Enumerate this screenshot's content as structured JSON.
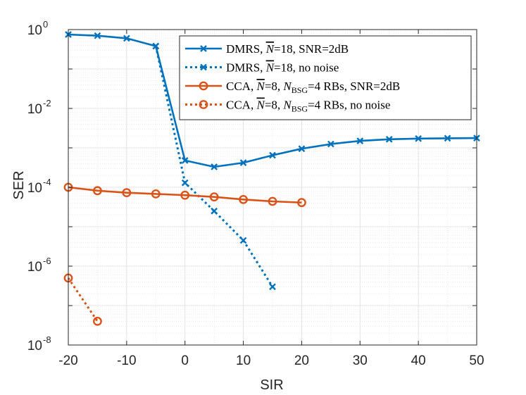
{
  "chart_data": {
    "type": "line",
    "title": "",
    "xlabel": "SIR",
    "ylabel": "SER",
    "xlim": [
      -20,
      50
    ],
    "ylim": [
      1e-08,
      1
    ],
    "yscale": "log",
    "xticks": [
      -20,
      -10,
      0,
      10,
      20,
      30,
      40,
      50
    ],
    "xtick_labels": [
      "-20",
      "-10",
      "0",
      "10",
      "20",
      "30",
      "40",
      "50"
    ],
    "ytick_labels": [
      {
        "base": "10",
        "exp": "0",
        "value": 1
      },
      {
        "base": "10",
        "exp": "-2",
        "value": 0.01
      },
      {
        "base": "10",
        "exp": "-4",
        "value": 0.0001
      },
      {
        "base": "10",
        "exp": "-6",
        "value": 1e-06
      },
      {
        "base": "10",
        "exp": "-8",
        "value": 1e-08
      }
    ],
    "grid": true,
    "legend_position": "top-right",
    "series": [
      {
        "name": "DMRS, N̄=18, SNR=2dB",
        "legend": {
          "prefix": "DMRS, ",
          "nbar": "N",
          "nbar_sub": "",
          "middle": "=18, SNR=2dB"
        },
        "color": "#0072BD",
        "style": "solid",
        "marker": "x",
        "x": [
          -20,
          -15,
          -10,
          -5,
          0,
          5,
          10,
          15,
          20,
          25,
          30,
          35,
          40,
          45,
          50
        ],
        "y": [
          0.75,
          0.7,
          0.6,
          0.38,
          0.00048,
          0.00033,
          0.00042,
          0.00065,
          0.00095,
          0.00125,
          0.0015,
          0.00165,
          0.00172,
          0.00175,
          0.00177
        ]
      },
      {
        "name": "DMRS, N̄=18, no noise",
        "legend": {
          "prefix": "DMRS, ",
          "nbar": "N",
          "nbar_sub": "",
          "middle": "=18, no noise"
        },
        "color": "#0072BD",
        "style": "dotted",
        "marker": "x",
        "x": [
          -5,
          0,
          5,
          10,
          15
        ],
        "y": [
          0.38,
          0.00013,
          2.5e-05,
          4.5e-06,
          3e-07
        ]
      },
      {
        "name": "CCA, N̄=8, N_BSG=4 RBs, SNR=2dB",
        "legend": {
          "prefix": "CCA, ",
          "nbar": "N",
          "nbar_sub": "",
          "middle": "=8, ",
          "nbsg": "N",
          "nbsg_sub": "BSG",
          "suffix": "=4 RBs, SNR=2dB"
        },
        "color": "#D95319",
        "style": "solid",
        "marker": "o",
        "x": [
          -20,
          -15,
          -10,
          -5,
          0,
          5,
          10,
          15,
          20
        ],
        "y": [
          0.0001,
          8.2e-05,
          7.3e-05,
          6.8e-05,
          6.3e-05,
          5.7e-05,
          4.9e-05,
          4.4e-05,
          4.1e-05
        ]
      },
      {
        "name": "CCA, N̄=8, N_BSG=4 RBs, no noise",
        "legend": {
          "prefix": "CCA, ",
          "nbar": "N",
          "nbar_sub": "",
          "middle": "=8, ",
          "nbsg": "N",
          "nbsg_sub": "BSG",
          "suffix": "=4 RBs, no noise"
        },
        "color": "#D95319",
        "style": "dotted",
        "marker": "o",
        "x": [
          -20,
          -15
        ],
        "y": [
          5e-07,
          4e-08
        ]
      }
    ]
  }
}
